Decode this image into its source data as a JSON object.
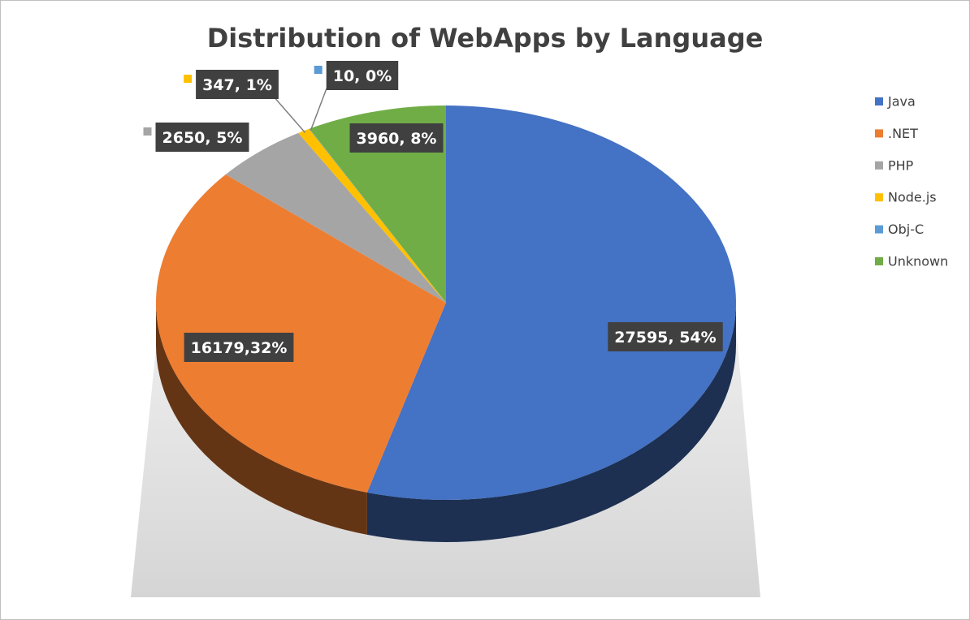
{
  "chart_data": {
    "type": "pie",
    "title": "Distribution of WebApps by Language",
    "categories": [
      "Java",
      ".NET",
      "PHP",
      "Node.js",
      "Obj-C",
      "Unknown"
    ],
    "values": [
      27595,
      16179,
      2650,
      347,
      10,
      3960
    ],
    "percent_labels": [
      "54%",
      "32%",
      "5%",
      "1%",
      "0%",
      "8%"
    ],
    "data_labels": [
      "27595, 54%",
      "16179,32%",
      "2650, 5%",
      "347, 1%",
      "10, 0%",
      "3960, 8%"
    ],
    "colors": [
      "#4472C4",
      "#ED7D31",
      "#A5A5A5",
      "#FFC000",
      "#5B9BD5",
      "#70AD47"
    ],
    "style": "3d",
    "legend": "right"
  }
}
